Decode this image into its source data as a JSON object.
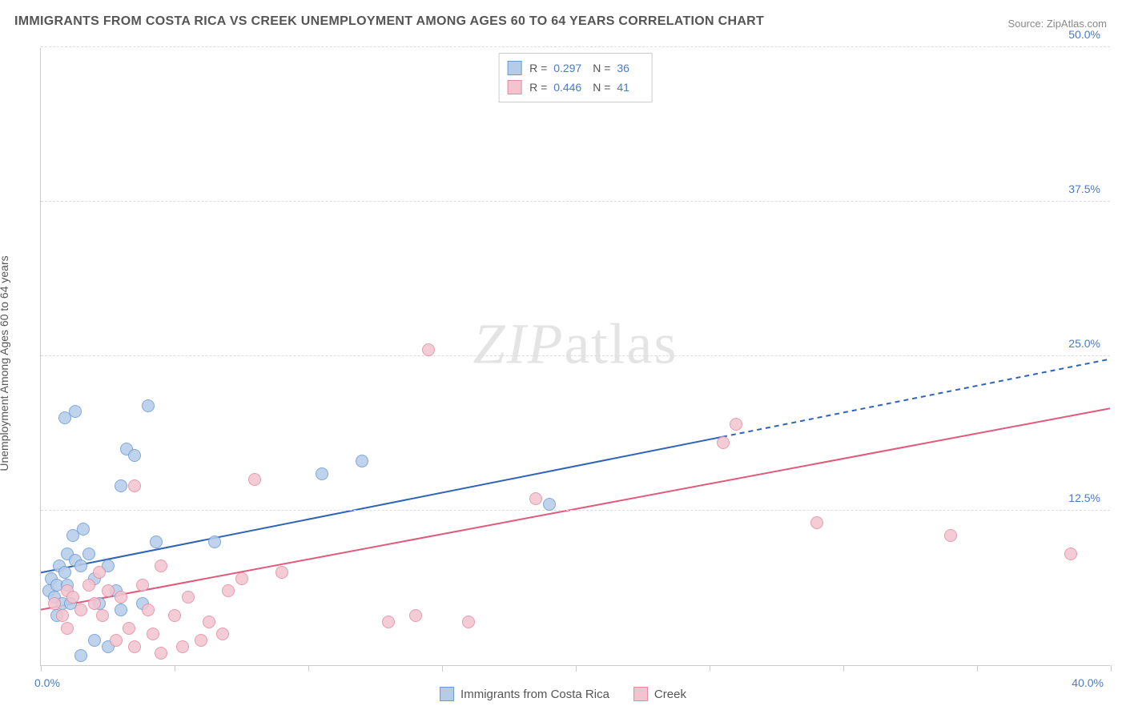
{
  "title": "IMMIGRANTS FROM COSTA RICA VS CREEK UNEMPLOYMENT AMONG AGES 60 TO 64 YEARS CORRELATION CHART",
  "source_label": "Source: ZipAtlas.com",
  "watermark": "ZIPatlas",
  "y_axis_label": "Unemployment Among Ages 60 to 64 years",
  "chart": {
    "type": "scatter",
    "background_color": "#ffffff",
    "grid_color": "#dddddd",
    "axis_color": "#cccccc",
    "tick_label_color": "#4a7ac6",
    "axis_label_color": "#555555",
    "xlim": [
      0,
      40
    ],
    "ylim": [
      0,
      50
    ],
    "x_origin_label": "0.0%",
    "x_max_label": "40.0%",
    "y_ticks": [
      {
        "v": 12.5,
        "label": "12.5%"
      },
      {
        "v": 25.0,
        "label": "25.0%"
      },
      {
        "v": 37.5,
        "label": "37.5%"
      },
      {
        "v": 50.0,
        "label": "50.0%"
      }
    ],
    "x_tick_positions": [
      0,
      5,
      10,
      15,
      20,
      25,
      30,
      35,
      40
    ],
    "marker_radius": 8,
    "marker_border_width": 1,
    "line_width": 2,
    "line_width_dash": 2,
    "label_fontsize": 14,
    "title_fontsize": 16
  },
  "series": [
    {
      "key": "costa_rica",
      "label": "Immigrants from Costa Rica",
      "fill": "#b5cce9",
      "stroke": "#6a9ad4",
      "line_color": "#2f63b5",
      "R": 0.297,
      "N": 36,
      "trend": {
        "x1": 0,
        "y1": 7.5,
        "x2": 25.5,
        "y2": 18.5,
        "dash_to_x": 40,
        "dash_to_y": 24.8
      },
      "points": [
        [
          0.3,
          6.0
        ],
        [
          0.4,
          7.0
        ],
        [
          0.5,
          5.5
        ],
        [
          0.6,
          6.5
        ],
        [
          0.7,
          8.0
        ],
        [
          0.8,
          5.0
        ],
        [
          0.9,
          7.5
        ],
        [
          1.0,
          6.5
        ],
        [
          1.0,
          9.0
        ],
        [
          1.2,
          10.5
        ],
        [
          1.3,
          8.5
        ],
        [
          1.5,
          8.0
        ],
        [
          1.6,
          11.0
        ],
        [
          0.9,
          20.0
        ],
        [
          1.3,
          20.5
        ],
        [
          1.8,
          9.0
        ],
        [
          2.0,
          7.0
        ],
        [
          2.2,
          5.0
        ],
        [
          2.5,
          8.0
        ],
        [
          2.8,
          6.0
        ],
        [
          3.0,
          14.5
        ],
        [
          3.2,
          17.5
        ],
        [
          3.5,
          17.0
        ],
        [
          4.0,
          21.0
        ],
        [
          4.3,
          10.0
        ],
        [
          6.5,
          10.0
        ],
        [
          2.5,
          1.5
        ],
        [
          2.0,
          2.0
        ],
        [
          1.5,
          0.8
        ],
        [
          3.0,
          4.5
        ],
        [
          3.8,
          5.0
        ],
        [
          12.0,
          16.5
        ],
        [
          10.5,
          15.5
        ],
        [
          19.0,
          13.0
        ],
        [
          0.6,
          4.0
        ],
        [
          1.1,
          5.0
        ]
      ]
    },
    {
      "key": "creek",
      "label": "Creek",
      "fill": "#f3c4cf",
      "stroke": "#e28ba1",
      "line_color": "#e05a7a",
      "R": 0.446,
      "N": 41,
      "trend": {
        "x1": 0,
        "y1": 4.5,
        "x2": 40,
        "y2": 20.8
      },
      "points": [
        [
          0.5,
          5.0
        ],
        [
          0.8,
          4.0
        ],
        [
          1.0,
          6.0
        ],
        [
          1.2,
          5.5
        ],
        [
          1.5,
          4.5
        ],
        [
          1.8,
          6.5
        ],
        [
          2.0,
          5.0
        ],
        [
          2.3,
          4.0
        ],
        [
          2.5,
          6.0
        ],
        [
          2.8,
          2.0
        ],
        [
          3.0,
          5.5
        ],
        [
          3.3,
          3.0
        ],
        [
          3.5,
          1.5
        ],
        [
          4.0,
          4.5
        ],
        [
          4.2,
          2.5
        ],
        [
          4.5,
          1.0
        ],
        [
          5.0,
          4.0
        ],
        [
          5.3,
          1.5
        ],
        [
          5.5,
          5.5
        ],
        [
          6.0,
          2.0
        ],
        [
          6.3,
          3.5
        ],
        [
          6.8,
          2.5
        ],
        [
          7.0,
          6.0
        ],
        [
          7.5,
          7.0
        ],
        [
          8.0,
          15.0
        ],
        [
          3.5,
          14.5
        ],
        [
          4.5,
          8.0
        ],
        [
          9.0,
          7.5
        ],
        [
          13.0,
          3.5
        ],
        [
          14.0,
          4.0
        ],
        [
          16.0,
          3.5
        ],
        [
          18.5,
          13.5
        ],
        [
          14.5,
          25.5
        ],
        [
          25.5,
          18.0
        ],
        [
          26.0,
          19.5
        ],
        [
          29.0,
          11.5
        ],
        [
          34.0,
          10.5
        ],
        [
          38.5,
          9.0
        ],
        [
          1.0,
          3.0
        ],
        [
          2.2,
          7.5
        ],
        [
          3.8,
          6.5
        ]
      ]
    }
  ],
  "legend_stats": {
    "R_label": "R =",
    "N_label": "N ="
  }
}
